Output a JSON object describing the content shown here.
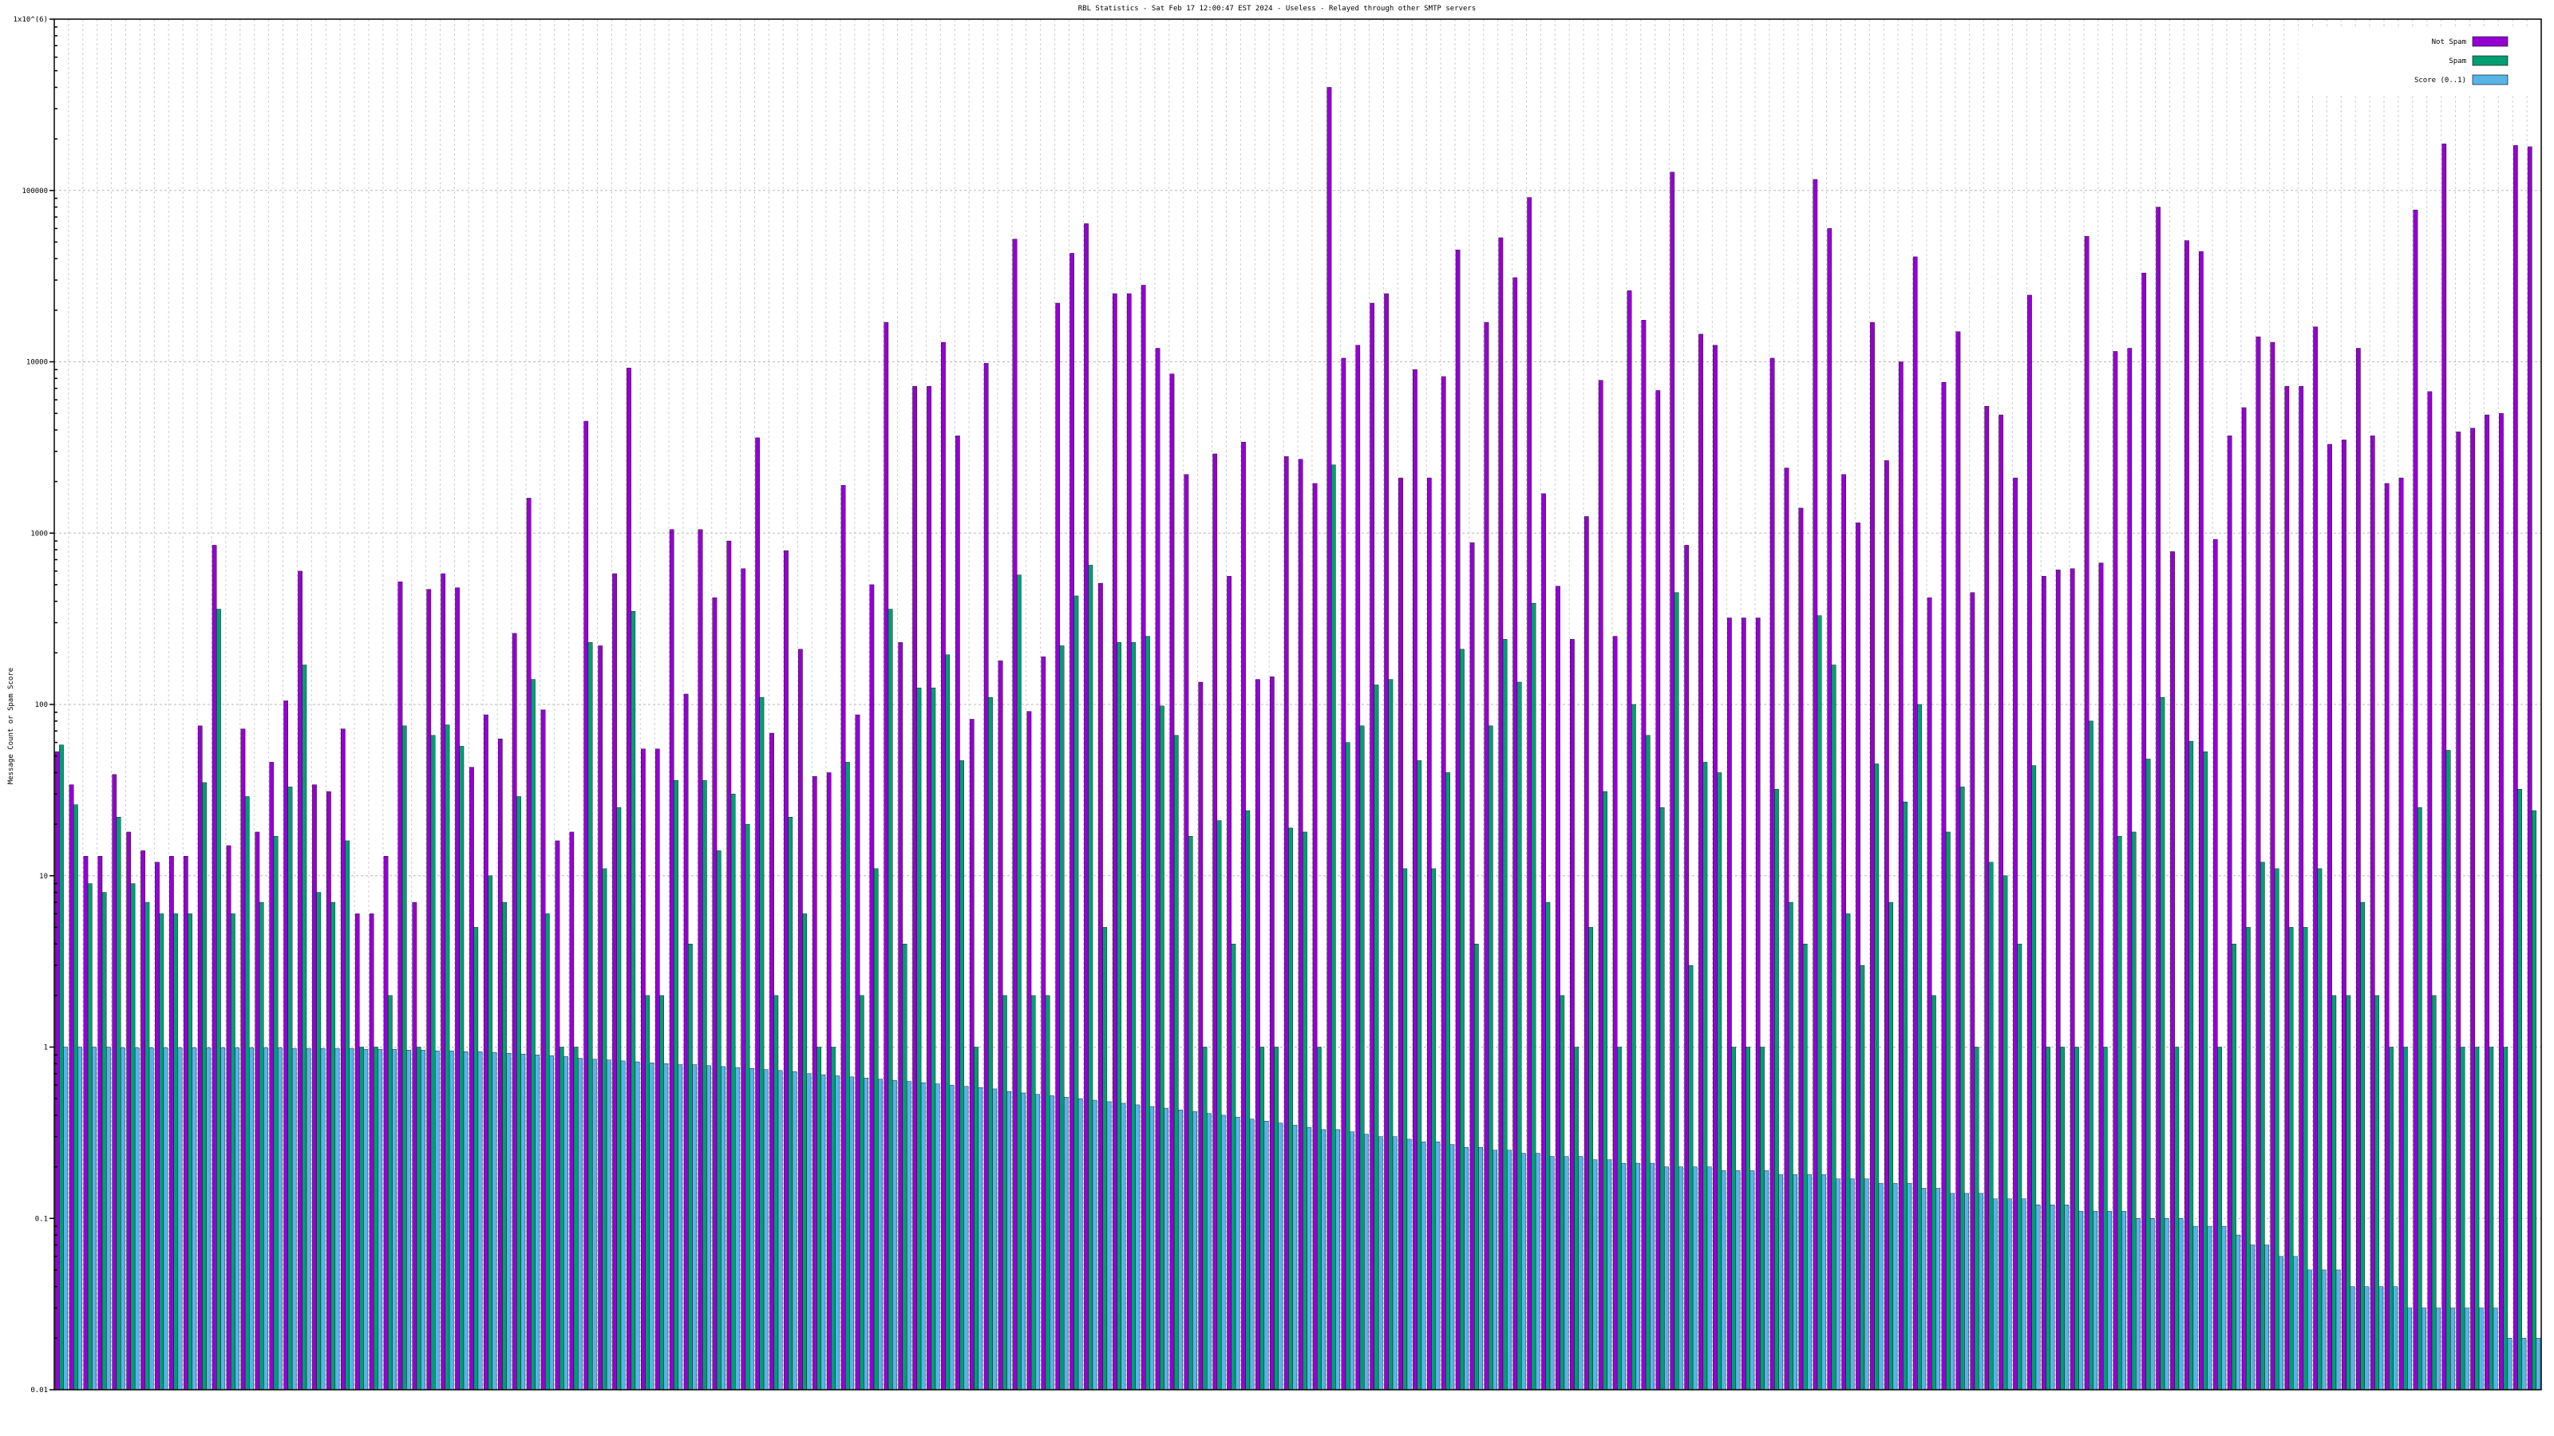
{
  "chart_data": {
    "type": "bar",
    "title": "RBL Statistics - Sat Feb 17 12:00:47 EST 2024 - Useless - Relayed through other SMTP servers",
    "xlabel": "",
    "ylabel": "Message Count or Spam Score",
    "y_scale": "log",
    "ylim": [
      0.01,
      1000000
    ],
    "y_ticks": [
      {
        "value": 0.01,
        "label": "0.01"
      },
      {
        "value": 0.1,
        "label": "0.1"
      },
      {
        "value": 1,
        "label": "1"
      },
      {
        "value": 10,
        "label": "10"
      },
      {
        "value": 100,
        "label": "100"
      },
      {
        "value": 1000,
        "label": "1000"
      },
      {
        "value": 10000,
        "label": "10000"
      },
      {
        "value": 100000,
        "label": "100000"
      },
      {
        "value": 1000000,
        "label": "1x10^(6)"
      }
    ],
    "grid": true,
    "legend_position": "top-right",
    "series": [
      {
        "name": "Not Spam",
        "color": "#9400d3",
        "values": [
          53,
          34,
          13,
          13,
          39,
          18,
          14,
          12,
          13,
          13,
          75,
          850,
          15,
          72,
          18,
          46,
          105,
          600,
          34,
          31,
          72,
          6,
          6,
          13,
          520,
          7,
          470,
          580,
          480,
          43,
          87,
          63,
          260,
          1600,
          93,
          16,
          18,
          4500,
          220,
          580,
          9200,
          55,
          55,
          1050,
          115,
          1050,
          420,
          900,
          620,
          3600,
          68,
          790,
          210,
          38,
          40,
          1900,
          87,
          500,
          17000,
          230,
          7200,
          7200,
          13000,
          3700,
          82,
          9800,
          180,
          52000,
          91,
          190,
          22000,
          43000,
          64000,
          510,
          25000,
          25000,
          28000,
          12000,
          8500,
          2200,
          135,
          2900,
          560,
          3400,
          140,
          145,
          2800,
          2700,
          1950,
          400000,
          10500,
          12500,
          22000,
          25000,
          2100,
          9000,
          2100,
          8200,
          45000,
          880,
          17000,
          53000,
          31000,
          91000,
          1700,
          490,
          240,
          1250,
          7800,
          250,
          26000,
          17500,
          6800,
          128000,
          850,
          14500,
          12500,
          320,
          320,
          320,
          10500,
          2400,
          1400,
          116000,
          60000,
          2200,
          1150,
          17000,
          2650,
          10000,
          41000,
          420,
          7600,
          15000,
          450,
          5500,
          4900,
          2100,
          24500,
          560,
          610,
          620,
          54000,
          670,
          11500,
          12000,
          33000,
          80000,
          780,
          51000,
          44000,
          920,
          3700,
          5400,
          14000,
          13000,
          7200,
          7200,
          16000,
          3300,
          3500,
          12000,
          3700,
          1950,
          2100,
          77000,
          6700,
          187000,
          3900,
          4100,
          4900,
          5000,
          183000,
          180000
        ]
      },
      {
        "name": "Spam",
        "color": "#009e73",
        "values": [
          58,
          26,
          9,
          8,
          22,
          9,
          7,
          6,
          6,
          6,
          35,
          360,
          6,
          29,
          7,
          17,
          33,
          170,
          8,
          7,
          16,
          1,
          1,
          2,
          75,
          1,
          66,
          76,
          57,
          5,
          10,
          7,
          29,
          140,
          6,
          1,
          1,
          230,
          11,
          25,
          350,
          2,
          2,
          36,
          4,
          36,
          14,
          30,
          20,
          110,
          2,
          22,
          6,
          1,
          1,
          46,
          2,
          11,
          360,
          4,
          125,
          125,
          195,
          47,
          1,
          110,
          2,
          570,
          2,
          2,
          220,
          430,
          650,
          5,
          230,
          230,
          250,
          98,
          66,
          17,
          1,
          21,
          4,
          24,
          1,
          1,
          19,
          18,
          1,
          2500,
          60,
          75,
          130,
          140,
          11,
          47,
          11,
          40,
          210,
          4,
          75,
          240,
          135,
          390,
          7,
          2,
          1,
          5,
          31,
          1,
          100,
          66,
          25,
          450,
          3,
          46,
          40,
          1,
          1,
          1,
          32,
          7,
          4,
          330,
          170,
          6,
          3,
          45,
          7,
          27,
          100,
          2,
          18,
          33,
          1,
          12,
          10,
          4,
          44,
          1,
          1,
          1,
          80,
          1,
          17,
          18,
          48,
          110,
          1,
          61,
          53,
          1,
          4,
          5,
          12,
          11,
          5,
          5,
          11,
          2,
          2,
          7,
          2,
          1,
          1,
          25,
          2,
          54,
          1,
          1,
          1,
          1,
          32,
          24
        ]
      },
      {
        "name": "Score (0..1)",
        "color": "#56b4e9",
        "values": [
          1.0,
          1.0,
          1.0,
          1.0,
          0.99,
          0.99,
          0.99,
          0.99,
          0.99,
          0.99,
          0.99,
          0.99,
          0.99,
          0.99,
          0.99,
          0.99,
          0.98,
          0.98,
          0.98,
          0.98,
          0.98,
          0.97,
          0.97,
          0.97,
          0.96,
          0.96,
          0.95,
          0.95,
          0.94,
          0.94,
          0.93,
          0.92,
          0.91,
          0.9,
          0.89,
          0.88,
          0.86,
          0.85,
          0.84,
          0.83,
          0.82,
          0.81,
          0.8,
          0.79,
          0.79,
          0.78,
          0.77,
          0.76,
          0.75,
          0.74,
          0.73,
          0.72,
          0.7,
          0.69,
          0.68,
          0.67,
          0.66,
          0.65,
          0.64,
          0.63,
          0.62,
          0.61,
          0.6,
          0.59,
          0.58,
          0.57,
          0.55,
          0.54,
          0.53,
          0.52,
          0.51,
          0.5,
          0.49,
          0.48,
          0.47,
          0.46,
          0.45,
          0.44,
          0.43,
          0.42,
          0.41,
          0.4,
          0.39,
          0.38,
          0.37,
          0.36,
          0.35,
          0.34,
          0.33,
          0.33,
          0.32,
          0.31,
          0.3,
          0.3,
          0.29,
          0.28,
          0.28,
          0.27,
          0.26,
          0.26,
          0.25,
          0.25,
          0.24,
          0.24,
          0.23,
          0.23,
          0.23,
          0.22,
          0.22,
          0.21,
          0.21,
          0.21,
          0.2,
          0.2,
          0.2,
          0.2,
          0.19,
          0.19,
          0.19,
          0.19,
          0.18,
          0.18,
          0.18,
          0.18,
          0.17,
          0.17,
          0.17,
          0.16,
          0.16,
          0.16,
          0.15,
          0.15,
          0.14,
          0.14,
          0.14,
          0.13,
          0.13,
          0.13,
          0.12,
          0.12,
          0.12,
          0.11,
          0.11,
          0.11,
          0.11,
          0.1,
          0.1,
          0.1,
          0.1,
          0.09,
          0.09,
          0.09,
          0.08,
          0.07,
          0.07,
          0.06,
          0.06,
          0.05,
          0.05,
          0.05,
          0.04,
          0.04,
          0.04,
          0.04,
          0.03,
          0.03,
          0.03,
          0.03,
          0.03,
          0.03,
          0.03,
          0.02,
          0.02,
          0.02
        ]
      }
    ]
  }
}
